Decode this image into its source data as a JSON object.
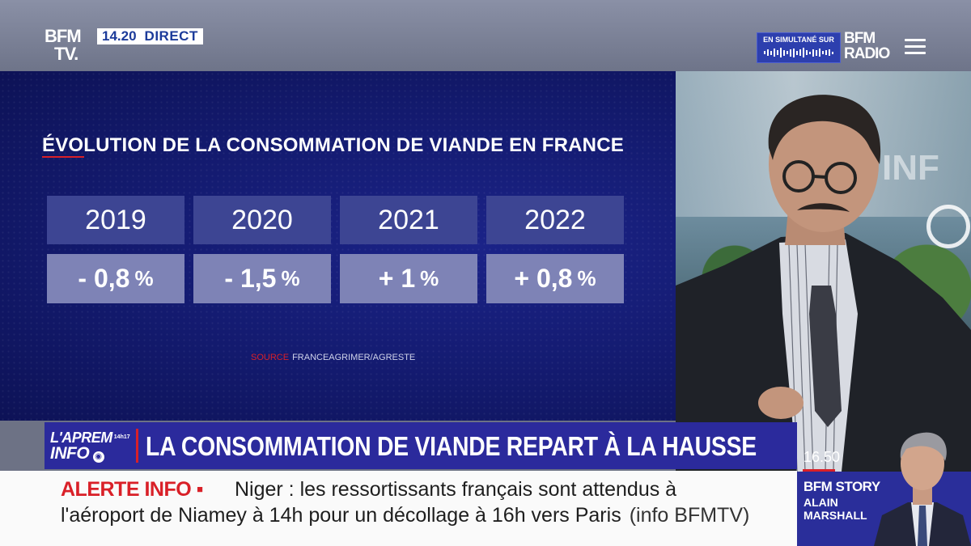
{
  "broadcast": {
    "channel_logo_line1": "BFM",
    "channel_logo_line2": "TV.",
    "time": "14.20",
    "live_label": "DIRECT",
    "simulcast_label": "EN SIMULTANÉ SUR",
    "radio_logo_line1": "BFM",
    "radio_logo_line2": "RADIO",
    "menu_icon": "hamburger-menu-icon"
  },
  "graphic": {
    "title": "ÉVOLUTION DE LA CONSOMMATION DE VIANDE EN FRANCE",
    "source_label": "SOURCE",
    "source_text": "FRANCEAGRIMER/AGRESTE"
  },
  "chart_data": {
    "type": "table",
    "title": "ÉVOLUTION DE LA CONSOMMATION DE VIANDE EN FRANCE",
    "categories": [
      "2019",
      "2020",
      "2021",
      "2022"
    ],
    "values": [
      -0.8,
      -1.5,
      1,
      0.8
    ],
    "value_labels": [
      "- 0,8",
      "- 1,5",
      "+ 1",
      "+ 0,8"
    ],
    "unit": "%",
    "source": "SOURCE FRANCEAGRIMER/AGRESTE"
  },
  "headline": {
    "show_line1": "L'APREM",
    "show_hours": "14h17",
    "show_line2": "INFO",
    "text": "LA CONSOMMATION DE VIANDE REPART À LA HAUSSE",
    "clock": "16.50"
  },
  "alert": {
    "label": "ALERTE INFO ▪",
    "line1": "Niger : les ressortissants français sont attendus à",
    "line2": "l'aéroport de Niamey à 14h pour un décollage à 16h vers Paris",
    "source": "(info BFMTV)"
  },
  "next_show": {
    "show": "BFM STORY",
    "host_first": "ALAIN",
    "host_last": "MARSHALL"
  },
  "colors": {
    "brand_red": "#d92028",
    "brand_blue": "#2b2a9c",
    "panel_navy": "#131a6e"
  }
}
